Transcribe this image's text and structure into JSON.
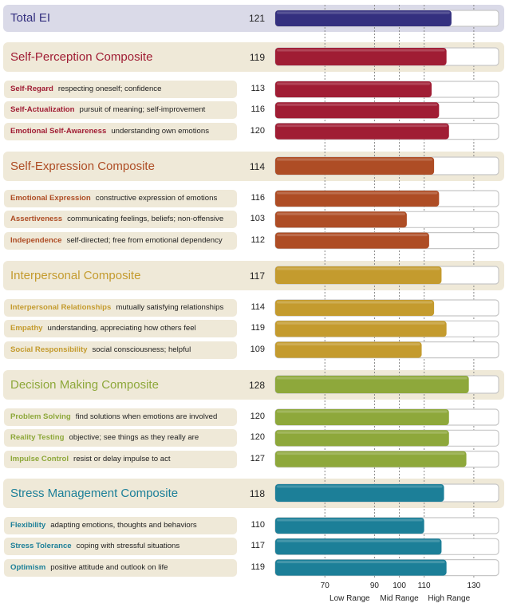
{
  "chart_data": {
    "type": "bar",
    "orientation": "horizontal",
    "axis": {
      "range": [
        50,
        140
      ],
      "ticks": [
        70,
        90,
        100,
        110,
        130
      ],
      "gridlines": [
        70,
        90,
        100,
        110,
        130
      ],
      "range_labels": [
        {
          "label": "Low Range",
          "at": 80
        },
        {
          "label": "Mid Range",
          "at": 100
        },
        {
          "label": "High Range",
          "at": 120
        }
      ]
    },
    "total": {
      "name": "Total EI",
      "value": 121,
      "color": "#34307f"
    },
    "composites": [
      {
        "name": "Self-Perception Composite",
        "value": 119,
        "color": "#a01d34",
        "subscales": [
          {
            "name": "Self-Regard",
            "desc": "respecting oneself; confidence",
            "value": 113
          },
          {
            "name": "Self-Actualization",
            "desc": "pursuit of meaning; self-improvement",
            "value": 116
          },
          {
            "name": "Emotional Self-Awareness",
            "desc": "understanding own emotions",
            "value": 120
          }
        ]
      },
      {
        "name": "Self-Expression Composite",
        "value": 114,
        "color": "#ae4d25",
        "subscales": [
          {
            "name": "Emotional Expression",
            "desc": "constructive expression of emotions",
            "value": 116
          },
          {
            "name": "Assertiveness",
            "desc": "communicating feelings, beliefs; non-offensive",
            "value": 103
          },
          {
            "name": "Independence",
            "desc": "self-directed; free from emotional dependency",
            "value": 112
          }
        ]
      },
      {
        "name": "Interpersonal Composite",
        "value": 117,
        "color": "#c49b2e",
        "subscales": [
          {
            "name": "Interpersonal Relationships",
            "desc": "mutually satisfying relationships",
            "value": 114
          },
          {
            "name": "Empathy",
            "desc": "understanding, appreciating how others feel",
            "value": 119
          },
          {
            "name": "Social Responsibility",
            "desc": "social consciousness; helpful",
            "value": 109
          }
        ]
      },
      {
        "name": "Decision Making Composite",
        "value": 128,
        "color": "#8ea83b",
        "subscales": [
          {
            "name": "Problem Solving",
            "desc": "find solutions when emotions are involved",
            "value": 120
          },
          {
            "name": "Reality Testing",
            "desc": "objective; see things as they really are",
            "value": 120
          },
          {
            "name": "Impulse Control",
            "desc": "resist or delay impulse to act",
            "value": 127
          }
        ]
      },
      {
        "name": "Stress Management Composite",
        "value": 118,
        "color": "#1c7f98",
        "subscales": [
          {
            "name": "Flexibility",
            "desc": "adapting emotions, thoughts and behaviors",
            "value": 110
          },
          {
            "name": "Stress Tolerance",
            "desc": "coping with stressful situations",
            "value": 117
          },
          {
            "name": "Optimism",
            "desc": "positive attitude and outlook on life",
            "value": 119
          }
        ]
      }
    ],
    "grid": true,
    "legend": "none"
  }
}
